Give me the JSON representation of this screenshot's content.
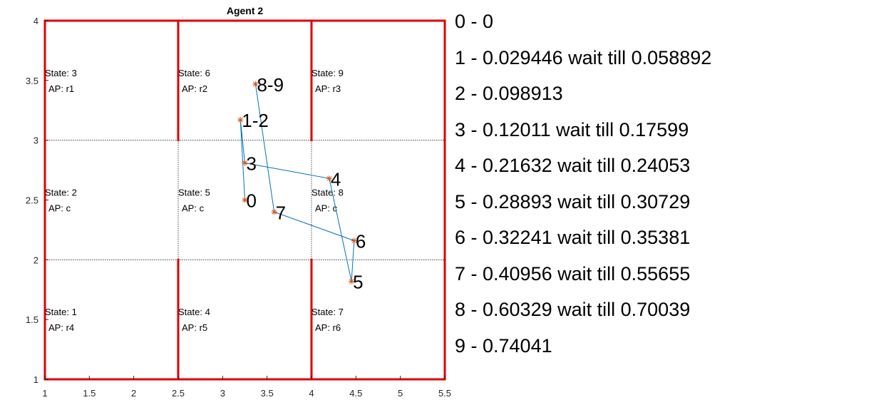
{
  "chart_data": {
    "type": "line",
    "title": "Agent 2",
    "xlim": [
      1,
      5.5
    ],
    "ylim": [
      1,
      4
    ],
    "xticks": [
      "1",
      "1.5",
      "2",
      "2.5",
      "3",
      "3.5",
      "4",
      "4.5",
      "5",
      "5.5"
    ],
    "yticks": [
      "1",
      "1.5",
      "2",
      "2.5",
      "3",
      "3.5",
      "4"
    ],
    "grid_lines": {
      "x": [
        2.5,
        4
      ],
      "y": [
        2,
        3
      ]
    },
    "walls": [
      {
        "x1": 1,
        "y1": 1,
        "x2": 1,
        "y2": 4
      },
      {
        "x1": 1,
        "y1": 4,
        "x2": 5.5,
        "y2": 4
      },
      {
        "x1": 5.5,
        "y1": 1,
        "x2": 5.5,
        "y2": 4
      },
      {
        "x1": 1,
        "y1": 1,
        "x2": 5.5,
        "y2": 1
      },
      {
        "x1": 2.5,
        "y1": 3,
        "x2": 2.5,
        "y2": 4
      },
      {
        "x1": 4,
        "y1": 3,
        "x2": 4,
        "y2": 4
      },
      {
        "x1": 2.5,
        "y1": 1,
        "x2": 2.5,
        "y2": 2
      },
      {
        "x1": 4,
        "y1": 1,
        "x2": 4,
        "y2": 2
      }
    ],
    "states": [
      {
        "x": 1,
        "y": 3.5,
        "state": "State: 3",
        "ap": "AP:  r1"
      },
      {
        "x": 2.5,
        "y": 3.5,
        "state": "State: 6",
        "ap": "AP:  r2"
      },
      {
        "x": 4,
        "y": 3.5,
        "state": "State: 9",
        "ap": "AP:  r3"
      },
      {
        "x": 1,
        "y": 2.5,
        "state": "State: 2",
        "ap": "AP:  c"
      },
      {
        "x": 2.5,
        "y": 2.5,
        "state": "State: 5",
        "ap": "AP:  c"
      },
      {
        "x": 4,
        "y": 2.5,
        "state": "State: 8",
        "ap": "AP:  c"
      },
      {
        "x": 1,
        "y": 1.5,
        "state": "State: 1",
        "ap": "AP:  r4"
      },
      {
        "x": 2.5,
        "y": 1.5,
        "state": "State: 4",
        "ap": "AP:  r5"
      },
      {
        "x": 4,
        "y": 1.5,
        "state": "State: 7",
        "ap": "AP:  r6"
      }
    ],
    "path": {
      "x": [
        3.25,
        3.2,
        3.25,
        4.2,
        4.45,
        4.48,
        3.58,
        3.37
      ],
      "y": [
        2.5,
        3.17,
        2.81,
        2.68,
        1.82,
        2.16,
        2.4,
        3.47
      ],
      "labels": [
        "0",
        "1-2",
        "3",
        "4",
        "5",
        "6",
        "7",
        "8-9"
      ],
      "line_color": "#0072BD",
      "marker_color": "#D95319"
    }
  },
  "timeline": [
    "0 - 0",
    "1 - 0.029446 wait till 0.058892",
    "2 - 0.098913",
    "3 - 0.12011 wait till 0.17599",
    "4 - 0.21632 wait till 0.24053",
    "5 - 0.28893 wait till 0.30729",
    "6 - 0.32241 wait till 0.35381",
    "7 - 0.40956 wait till 0.55655",
    "8 - 0.60329 wait till 0.70039",
    "9 - 0.74041"
  ]
}
